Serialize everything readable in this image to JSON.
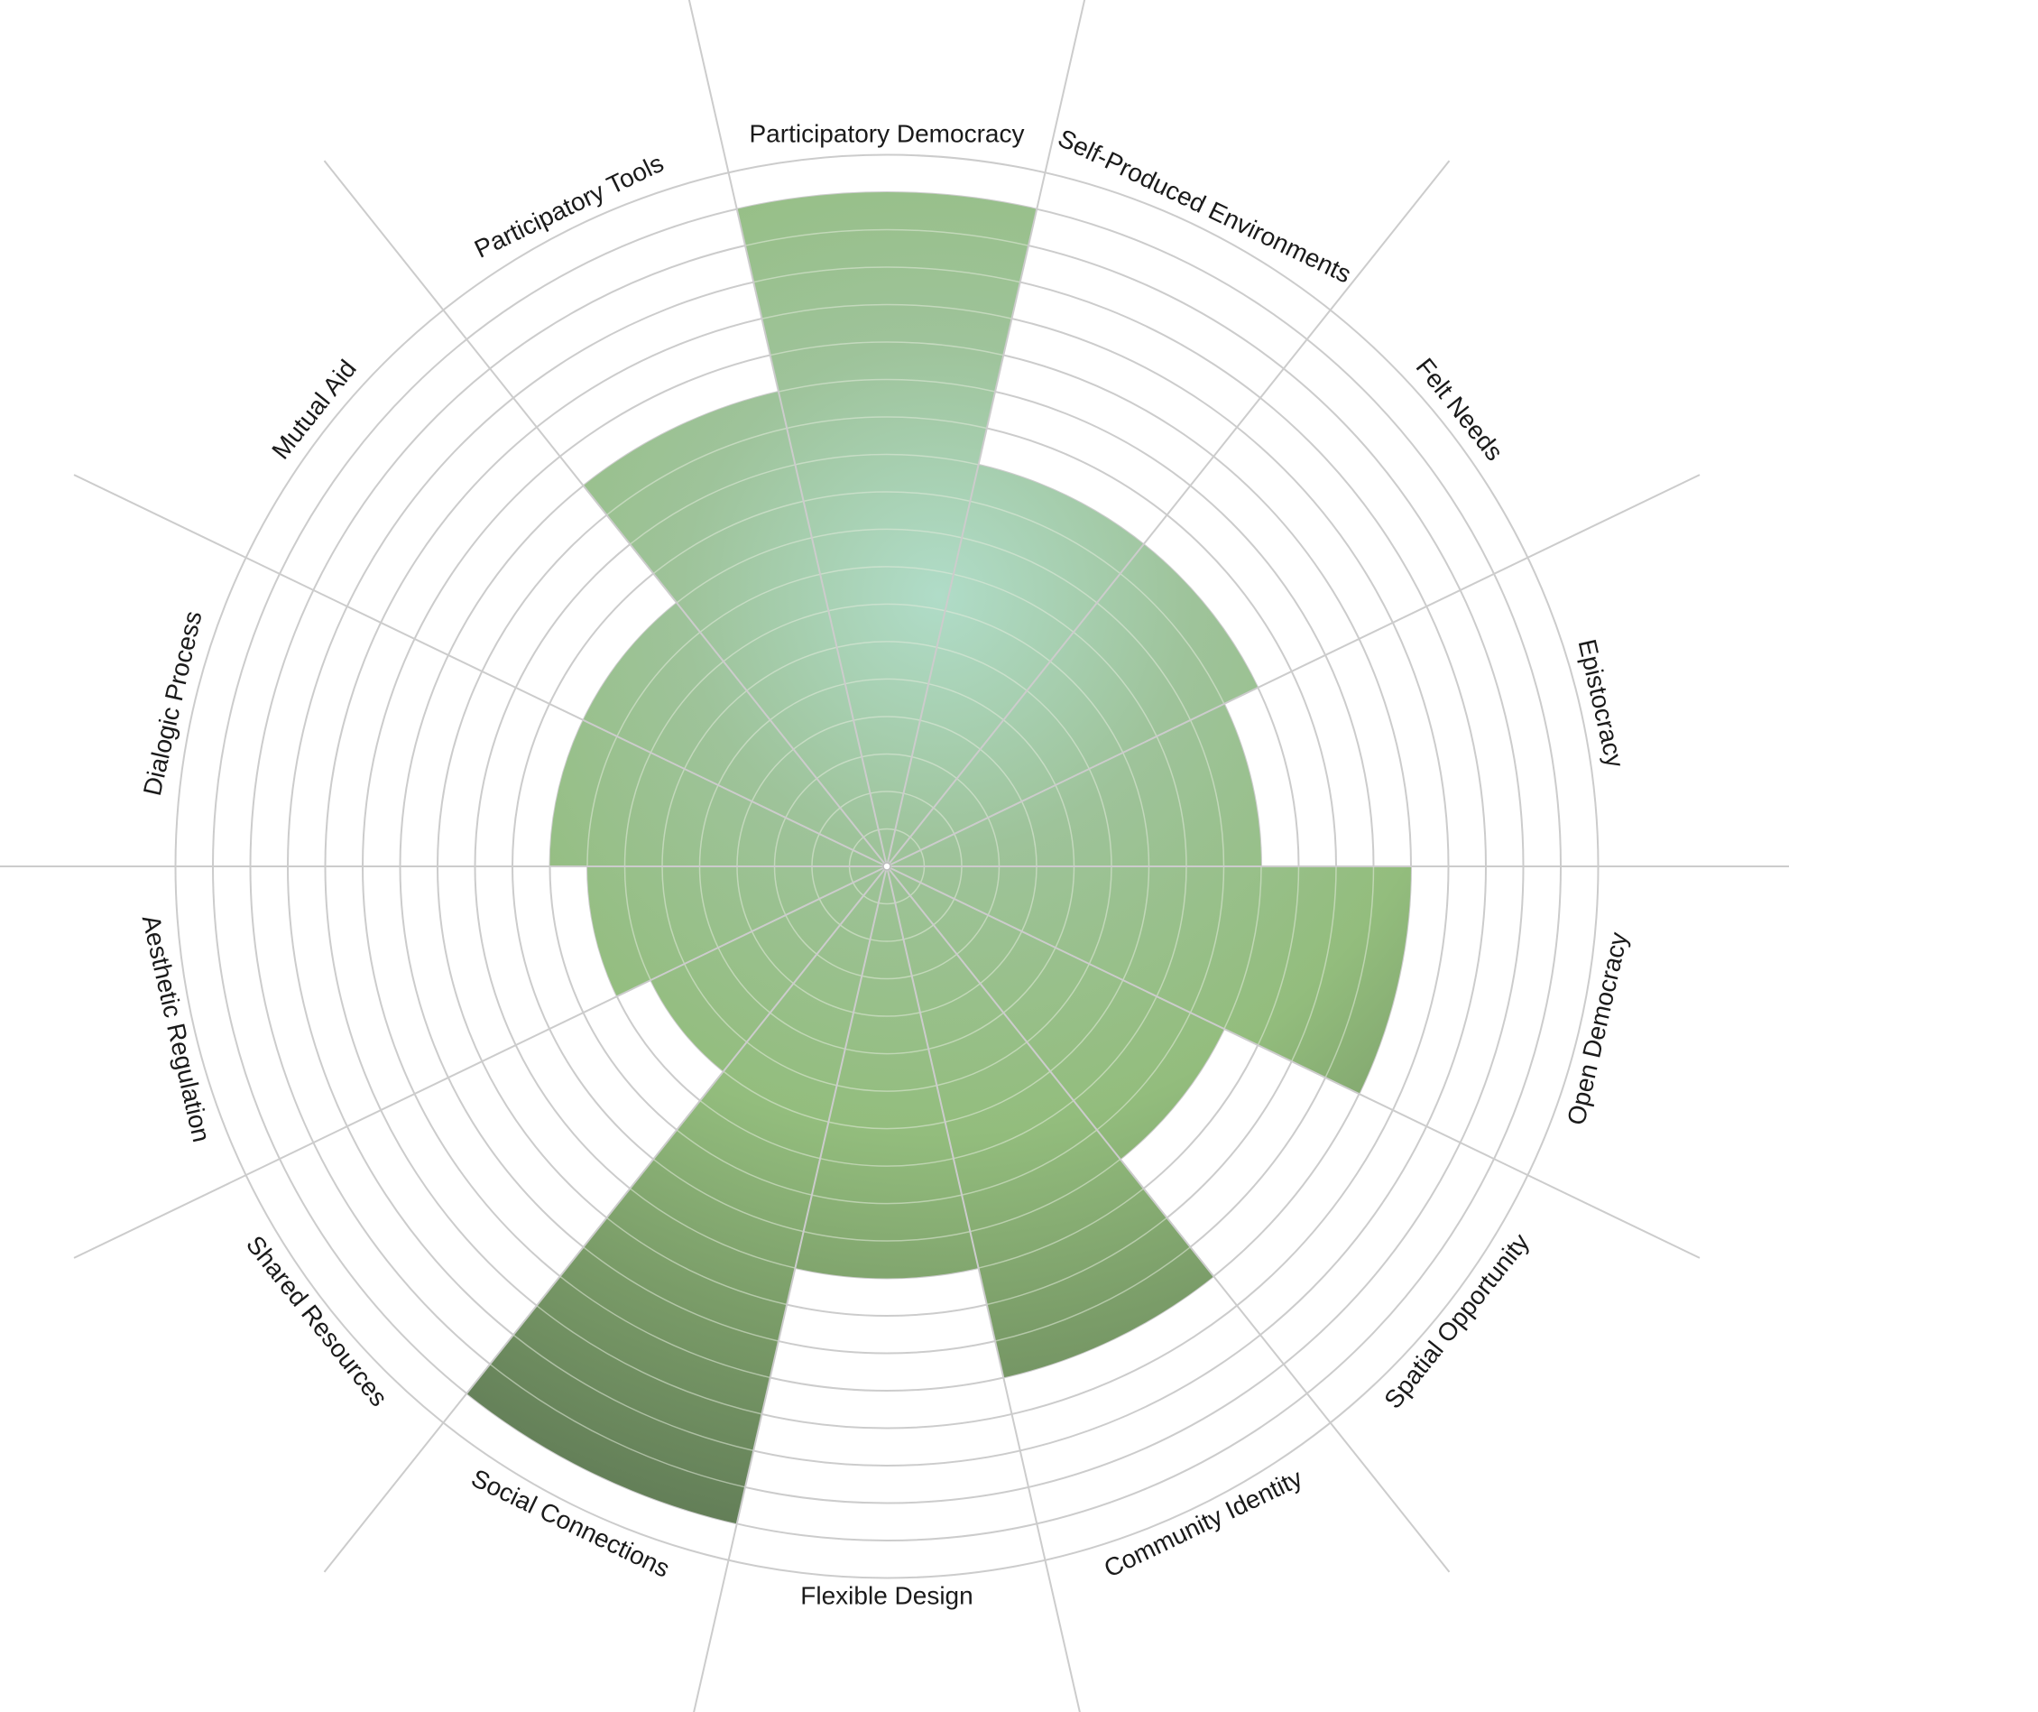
{
  "chart_data": {
    "type": "polar-area",
    "categories": [
      "Participatory Democracy",
      "Self-Produced Environments",
      "Felt Needs",
      "Epistocracy",
      "Open Democracy",
      "Spatial Opportunity",
      "Community Identity",
      "Flexible Design",
      "Social Connections",
      "Shared Resources",
      "Aesthetic Regulation",
      "Dialogic Process",
      "Mutual Aid",
      "Participatory Tools"
    ],
    "values": [
      18,
      11,
      11,
      10,
      14,
      10,
      14,
      11,
      18,
      7,
      8,
      9,
      9,
      13
    ],
    "rmax": 19,
    "ring_step": 1,
    "grid": true,
    "colors": {
      "light_green": "#93bd7d",
      "mid_green": "#7a9c68",
      "dark_green": "#5b7452",
      "mint": "#b0dcc8",
      "grid_line": "#cccccc",
      "inner_grid": "#e3ebdc"
    }
  }
}
